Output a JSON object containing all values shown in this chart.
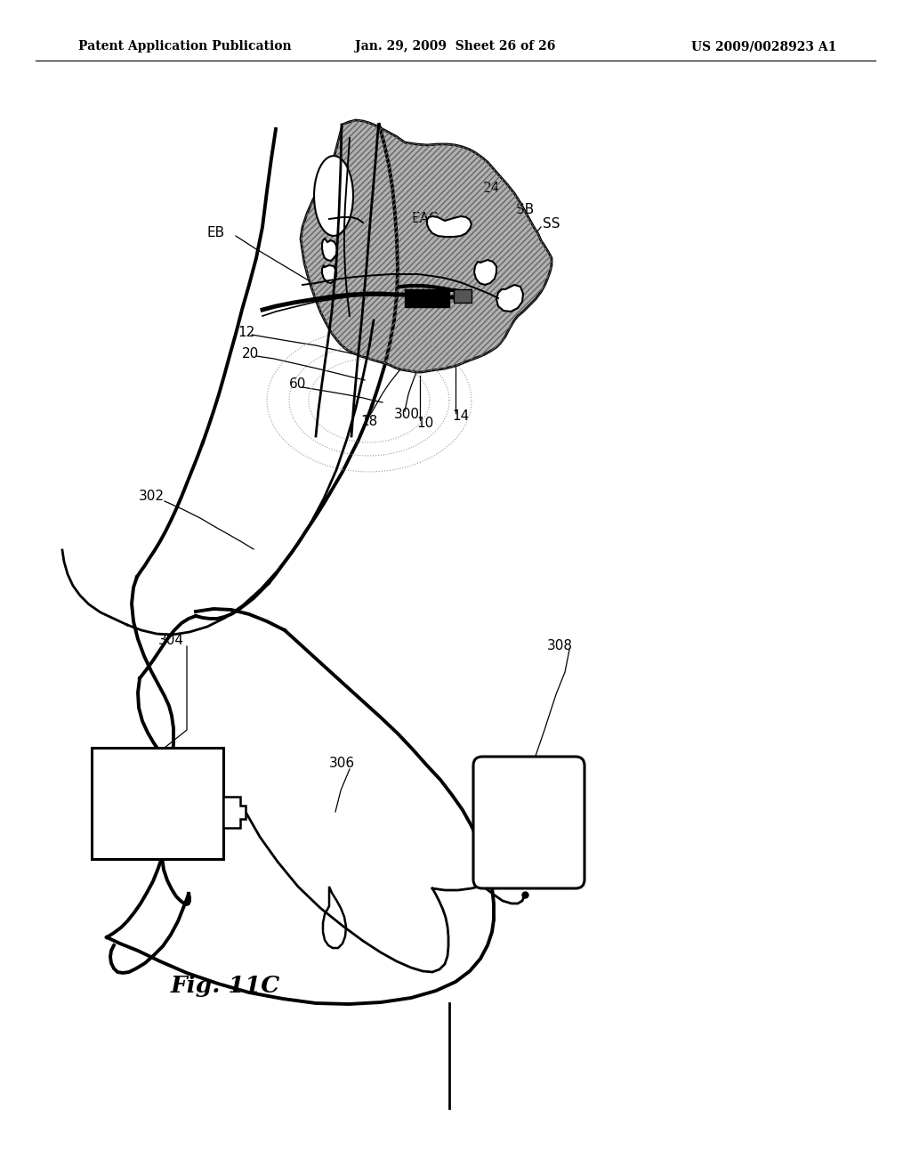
{
  "bg_color": "#ffffff",
  "header_left": "Patent Application Publication",
  "header_mid": "Jan. 29, 2009  Sheet 26 of 26",
  "header_right": "US 2009/0028923 A1",
  "fig_label": "Fig. 11C",
  "gray_fill": "#b0b0b0",
  "dark_gray": "#808080",
  "black": "#000000",
  "white": "#ffffff",
  "label_fs": 11,
  "header_fs": 10
}
